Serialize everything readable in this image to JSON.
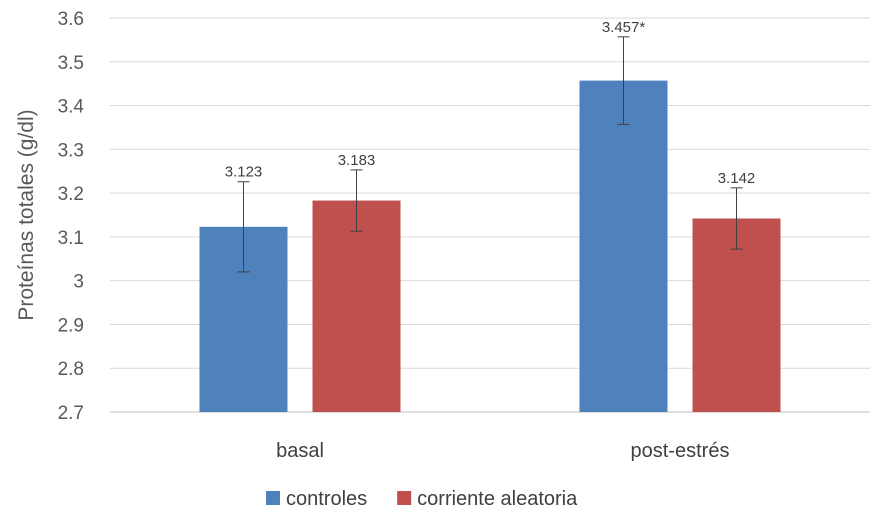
{
  "chart_data": {
    "type": "bar",
    "title": "",
    "xlabel": "",
    "ylabel": "Proteínas totales (g/dl)",
    "ylim": [
      2.7,
      3.6
    ],
    "yticks": [
      "2.7",
      "2.8",
      "2.9",
      "3",
      "3.1",
      "3.2",
      "3.3",
      "3.4",
      "3.5",
      "3.6"
    ],
    "grid": true,
    "legend_position": "bottom",
    "categories": [
      "basal",
      "post-estrés"
    ],
    "series": [
      {
        "name": "controles",
        "color": "#4f81bd",
        "values": [
          3.123,
          3.457
        ],
        "labels": [
          "3.123",
          "3.457*"
        ],
        "errors": [
          0.103,
          0.1
        ]
      },
      {
        "name": "corriente aleatoria",
        "color": "#c0504d",
        "values": [
          3.183,
          3.142
        ],
        "labels": [
          "3.183",
          "3.142"
        ],
        "errors": [
          0.07,
          0.07
        ]
      }
    ]
  }
}
